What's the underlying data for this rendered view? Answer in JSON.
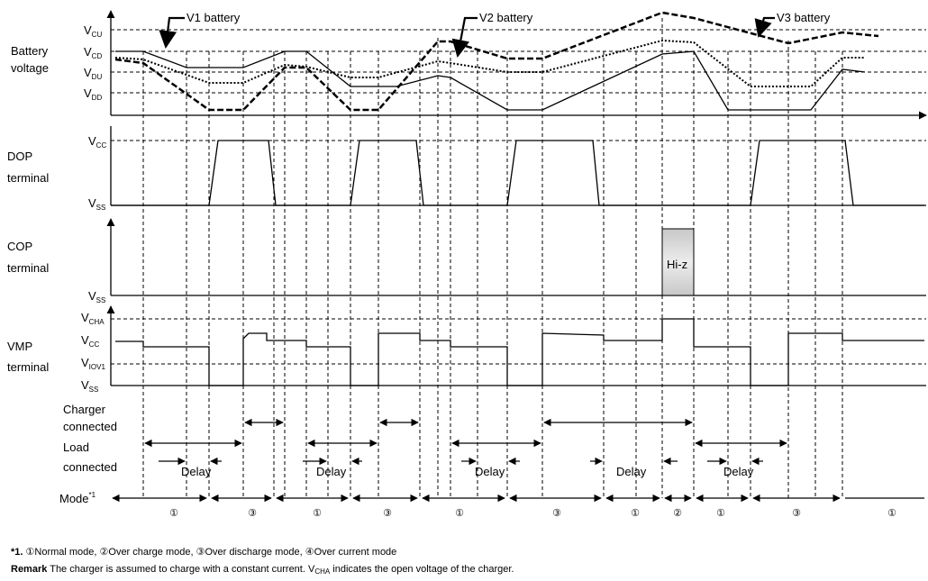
{
  "row_labels": {
    "battery_voltage": [
      "Battery",
      "voltage"
    ],
    "dop_terminal": [
      "DOP",
      "terminal"
    ],
    "cop_terminal": [
      "COP",
      "terminal"
    ],
    "vmp_terminal": [
      "VMP",
      "terminal"
    ],
    "charger_connected": [
      "Charger",
      "connected"
    ],
    "load_connected": [
      "Load",
      "connected"
    ],
    "mode": "Mode"
  },
  "voltage_levels": {
    "vcu": {
      "main": "V",
      "sub": "CU"
    },
    "vcd": {
      "main": "V",
      "sub": "CD"
    },
    "vdu": {
      "main": "V",
      "sub": "DU"
    },
    "vdd": {
      "main": "V",
      "sub": "DD"
    },
    "vcc": {
      "main": "V",
      "sub": "CC"
    },
    "vss": {
      "main": "V",
      "sub": "SS"
    },
    "vcha": {
      "main": "V",
      "sub": "CHA"
    },
    "viov1": {
      "main": "V",
      "sub": "IOV1"
    }
  },
  "battery_callouts": [
    "V1 battery",
    "V2 battery",
    "V3 battery"
  ],
  "hiz_label": "Hi-z",
  "delay_label": "Delay",
  "mode_superscript": "*1",
  "mode_sequence": [
    "①",
    "③",
    "①",
    "③",
    "①",
    "③",
    "①",
    "②",
    "①",
    "③",
    "①"
  ],
  "footnotes": {
    "note_mark": "*1.",
    "note_text": "①Normal mode, ②Over charge mode, ③Over discharge mode, ④Over current mode",
    "remark_label": "Remark",
    "remark_text_a": "The charger is assumed to charge with a constant current.  V",
    "remark_sub": "CHA",
    "remark_text_b": " indicates the open voltage of the charger."
  }
}
